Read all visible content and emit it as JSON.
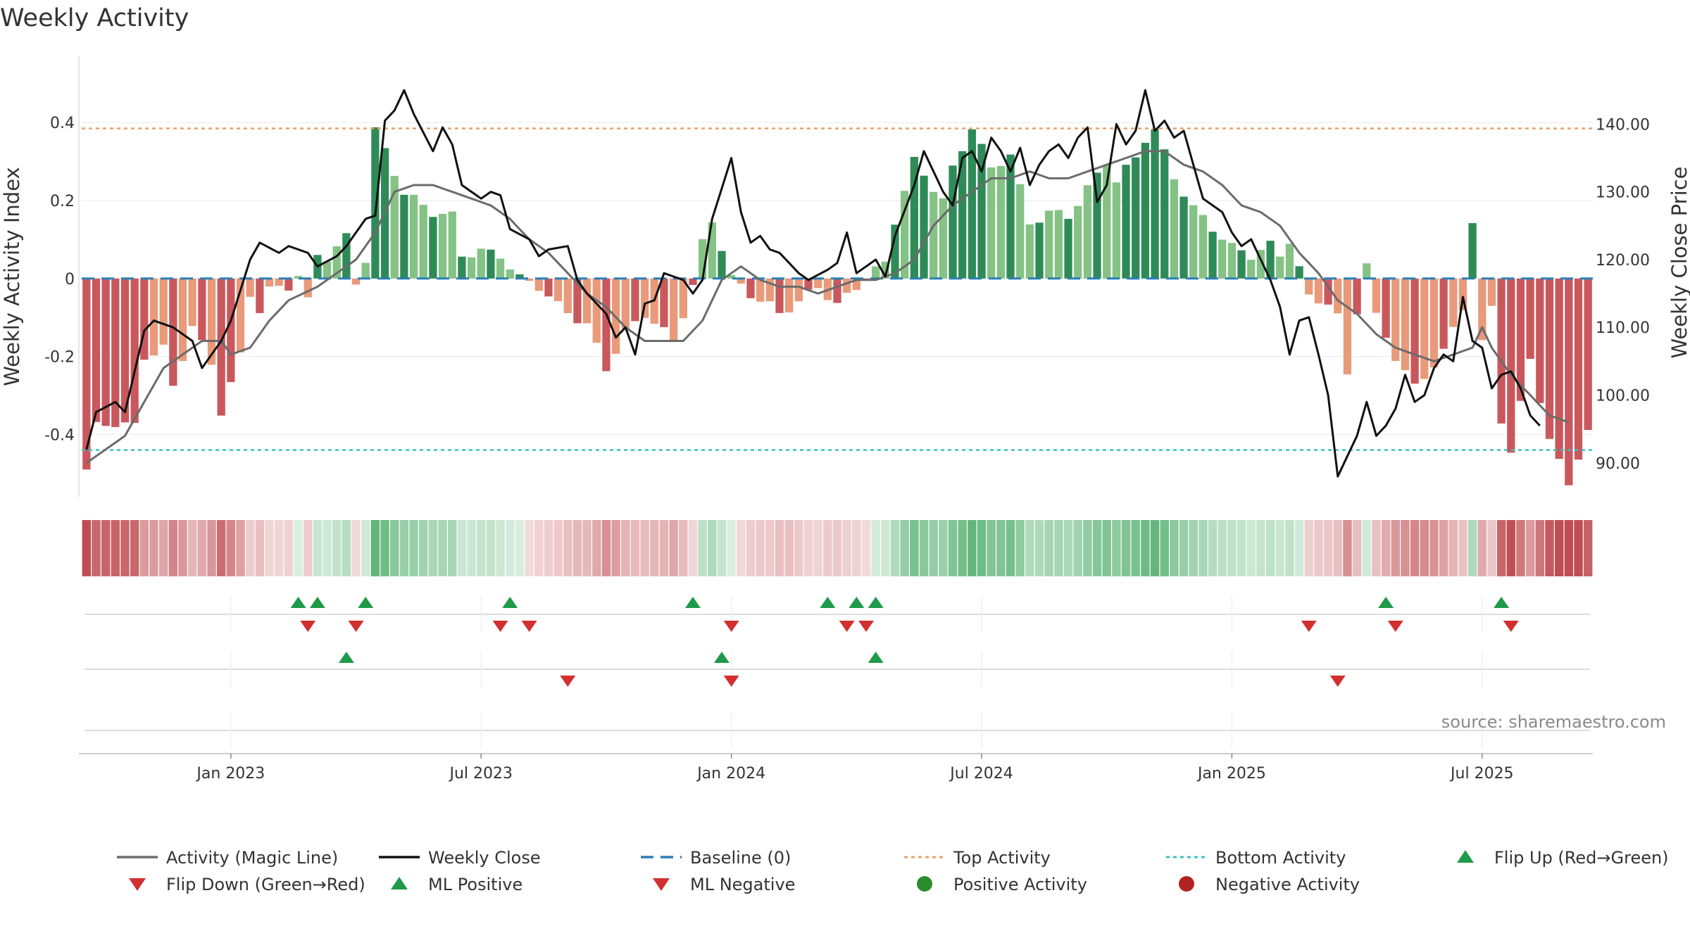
{
  "chart_data": {
    "type": "bar",
    "title": "Weekly Activity",
    "ylabel_left": "Weekly Activity Index",
    "ylabel_right": "Weekly Close Price",
    "ylim_left": [
      -0.56,
      0.57
    ],
    "ylim_right": [
      85.0,
      150.0
    ],
    "left_ticks": [
      {
        "v": 0.4,
        "label": "0.4"
      },
      {
        "v": 0.2,
        "label": "0.2"
      },
      {
        "v": 0,
        "label": "0"
      },
      {
        "v": -0.2,
        "label": "-0.2"
      },
      {
        "v": -0.4,
        "label": "-0.4"
      }
    ],
    "right_ticks": [
      {
        "v": 140,
        "label": "140.00"
      },
      {
        "v": 130,
        "label": "130.00"
      },
      {
        "v": 120,
        "label": "120.00"
      },
      {
        "v": 110,
        "label": "110.00"
      },
      {
        "v": 100,
        "label": "100.00"
      },
      {
        "v": 90,
        "label": "90.00"
      }
    ],
    "x_ticks": [
      {
        "week": 15,
        "label": "Jan 2023"
      },
      {
        "week": 41,
        "label": "Jul 2023"
      },
      {
        "week": 67,
        "label": "Jan 2024"
      },
      {
        "week": 93,
        "label": "Jul 2024"
      },
      {
        "week": 119,
        "label": "Jan 2025"
      },
      {
        "week": 145,
        "label": "Jul 2025"
      }
    ],
    "top_activity": 0.385,
    "bottom_activity": -0.44,
    "weeks": 157,
    "activity_knots": [
      [
        0,
        -0.49
      ],
      [
        1,
        -0.38
      ],
      [
        3,
        -0.37
      ],
      [
        5,
        -0.38
      ],
      [
        6,
        -0.2
      ],
      [
        8,
        -0.18
      ],
      [
        9,
        -0.28
      ],
      [
        11,
        -0.12
      ],
      [
        13,
        -0.22
      ],
      [
        14,
        -0.34
      ],
      [
        16,
        -0.2
      ],
      [
        17,
        -0.04
      ],
      [
        18,
        -0.08
      ],
      [
        19,
        -0.03
      ],
      [
        21,
        -0.02
      ],
      [
        22,
        0.01
      ],
      [
        23,
        -0.06
      ],
      [
        24,
        0.06
      ],
      [
        25,
        0.055
      ],
      [
        27,
        0.105
      ],
      [
        28,
        -0.01
      ],
      [
        29,
        0.05
      ],
      [
        30,
        0.38
      ],
      [
        33,
        0.22
      ],
      [
        36,
        0.17
      ],
      [
        38,
        0.16
      ],
      [
        39,
        0.06
      ],
      [
        41,
        0.07
      ],
      [
        43,
        0.06
      ],
      [
        45,
        0.0
      ],
      [
        47,
        -0.02
      ],
      [
        49,
        -0.07
      ],
      [
        52,
        -0.12
      ],
      [
        54,
        -0.23
      ],
      [
        56,
        -0.14
      ],
      [
        58,
        -0.09
      ],
      [
        61,
        -0.16
      ],
      [
        63,
        -0.02
      ],
      [
        64,
        0.09
      ],
      [
        65,
        0.15
      ],
      [
        66,
        0.08
      ],
      [
        67,
        0.0
      ],
      [
        69,
        -0.04
      ],
      [
        71,
        -0.07
      ],
      [
        72,
        -0.09
      ],
      [
        74,
        -0.06
      ],
      [
        76,
        -0.02
      ],
      [
        78,
        -0.07
      ],
      [
        80,
        -0.02
      ],
      [
        82,
        0.02
      ],
      [
        83,
        0.04
      ],
      [
        84,
        0.15
      ],
      [
        86,
        0.3
      ],
      [
        89,
        0.2
      ],
      [
        90,
        0.28
      ],
      [
        92,
        0.39
      ],
      [
        94,
        0.28
      ],
      [
        96,
        0.32
      ],
      [
        98,
        0.14
      ],
      [
        100,
        0.17
      ],
      [
        102,
        0.16
      ],
      [
        104,
        0.23
      ],
      [
        106,
        0.3
      ],
      [
        107,
        0.25
      ],
      [
        109,
        0.31
      ],
      [
        110,
        0.36
      ],
      [
        111,
        0.38
      ],
      [
        113,
        0.26
      ],
      [
        115,
        0.18
      ],
      [
        117,
        0.13
      ],
      [
        119,
        0.08
      ],
      [
        121,
        0.06
      ],
      [
        123,
        0.085
      ],
      [
        124,
        0.06
      ],
      [
        125,
        0.1
      ],
      [
        127,
        -0.05
      ],
      [
        129,
        -0.06
      ],
      [
        130,
        -0.1
      ],
      [
        131,
        -0.25
      ],
      [
        132,
        -0.08
      ],
      [
        133,
        0.04
      ],
      [
        134,
        -0.1
      ],
      [
        136,
        -0.2
      ],
      [
        138,
        -0.28
      ],
      [
        140,
        -0.22
      ],
      [
        141,
        -0.19
      ],
      [
        143,
        -0.07
      ],
      [
        144,
        0.145
      ],
      [
        145,
        -0.17
      ],
      [
        146,
        -0.07
      ],
      [
        147,
        -0.36
      ],
      [
        148,
        -0.45
      ],
      [
        150,
        -0.2
      ],
      [
        152,
        -0.42
      ],
      [
        154,
        -0.52
      ],
      [
        156,
        -0.4
      ]
    ],
    "close_knots": [
      [
        0,
        92
      ],
      [
        1,
        97.5
      ],
      [
        3,
        99
      ],
      [
        4,
        97.5
      ],
      [
        6,
        109.5
      ],
      [
        7,
        111
      ],
      [
        9,
        110
      ],
      [
        11,
        108
      ],
      [
        12,
        104
      ],
      [
        13,
        106
      ],
      [
        14,
        108
      ],
      [
        15,
        111
      ],
      [
        17,
        120
      ],
      [
        18,
        122.5
      ],
      [
        20,
        121
      ],
      [
        21,
        122
      ],
      [
        23,
        121
      ],
      [
        24,
        119
      ],
      [
        26,
        120.5
      ],
      [
        27,
        122
      ],
      [
        29,
        126
      ],
      [
        30,
        126.5
      ],
      [
        31,
        140.5
      ],
      [
        32,
        142
      ],
      [
        33,
        145
      ],
      [
        34,
        141.5
      ],
      [
        36,
        136
      ],
      [
        37,
        139.5
      ],
      [
        38,
        137
      ],
      [
        39,
        131
      ],
      [
        41,
        129
      ],
      [
        42,
        130
      ],
      [
        43,
        129.5
      ],
      [
        44,
        124.5
      ],
      [
        46,
        123
      ],
      [
        47,
        120.5
      ],
      [
        48,
        121.5
      ],
      [
        50,
        122
      ],
      [
        51,
        117
      ],
      [
        52,
        115
      ],
      [
        54,
        112
      ],
      [
        55,
        108.5
      ],
      [
        56,
        110
      ],
      [
        57,
        106
      ],
      [
        58,
        113.5
      ],
      [
        59,
        114
      ],
      [
        60,
        118
      ],
      [
        62,
        117
      ],
      [
        63,
        115
      ],
      [
        64,
        117
      ],
      [
        65,
        126
      ],
      [
        67,
        135
      ],
      [
        68,
        127
      ],
      [
        69,
        122.5
      ],
      [
        70,
        123.5
      ],
      [
        71,
        121.5
      ],
      [
        72,
        121
      ],
      [
        74,
        118
      ],
      [
        75,
        117
      ],
      [
        77,
        118.5
      ],
      [
        78,
        119.5
      ],
      [
        79,
        124
      ],
      [
        80,
        118
      ],
      [
        81,
        119
      ],
      [
        82,
        120
      ],
      [
        83,
        117.5
      ],
      [
        84,
        123.5
      ],
      [
        86,
        131
      ],
      [
        87,
        136
      ],
      [
        89,
        130
      ],
      [
        90,
        128
      ],
      [
        91,
        135
      ],
      [
        92,
        136
      ],
      [
        93,
        133
      ],
      [
        94,
        138
      ],
      [
        95,
        136
      ],
      [
        96,
        133
      ],
      [
        97,
        136.5
      ],
      [
        98,
        131
      ],
      [
        99,
        134
      ],
      [
        100,
        136
      ],
      [
        101,
        137
      ],
      [
        102,
        135
      ],
      [
        103,
        138
      ],
      [
        104,
        139.5
      ],
      [
        105,
        128.5
      ],
      [
        106,
        131
      ],
      [
        107,
        140
      ],
      [
        108,
        137
      ],
      [
        109,
        139
      ],
      [
        110,
        145
      ],
      [
        111,
        139
      ],
      [
        112,
        140.5
      ],
      [
        113,
        138
      ],
      [
        114,
        139
      ],
      [
        115,
        134
      ],
      [
        116,
        129
      ],
      [
        117,
        128
      ],
      [
        118,
        127
      ],
      [
        119,
        124
      ],
      [
        120,
        122
      ],
      [
        121,
        123
      ],
      [
        122,
        120
      ],
      [
        123,
        117
      ],
      [
        124,
        113
      ],
      [
        125,
        106
      ],
      [
        126,
        111
      ],
      [
        127,
        111.5
      ],
      [
        128,
        106
      ],
      [
        129,
        100
      ],
      [
        130,
        88
      ],
      [
        131,
        91
      ],
      [
        132,
        94
      ],
      [
        133,
        99
      ],
      [
        134,
        94
      ],
      [
        135,
        95.5
      ],
      [
        136,
        98
      ],
      [
        137,
        103
      ],
      [
        138,
        99
      ],
      [
        139,
        100
      ],
      [
        140,
        104
      ],
      [
        141,
        106
      ],
      [
        142,
        105
      ],
      [
        143,
        114.5
      ],
      [
        144,
        108
      ],
      [
        145,
        107
      ],
      [
        146,
        101
      ],
      [
        147,
        103
      ],
      [
        148,
        103.5
      ],
      [
        149,
        101
      ],
      [
        150,
        97
      ],
      [
        151,
        95.5
      ]
    ],
    "magic_knots": [
      [
        0,
        90
      ],
      [
        2,
        92
      ],
      [
        4,
        94
      ],
      [
        6,
        99
      ],
      [
        8,
        104
      ],
      [
        10,
        106
      ],
      [
        12,
        108
      ],
      [
        14,
        108
      ],
      [
        15,
        106
      ],
      [
        17,
        107
      ],
      [
        19,
        111
      ],
      [
        21,
        114
      ],
      [
        24,
        116
      ],
      [
        26,
        118
      ],
      [
        28,
        120
      ],
      [
        30,
        124
      ],
      [
        32,
        130
      ],
      [
        34,
        131
      ],
      [
        36,
        131
      ],
      [
        38,
        130
      ],
      [
        40,
        129
      ],
      [
        42,
        128
      ],
      [
        44,
        126
      ],
      [
        46,
        123
      ],
      [
        48,
        121
      ],
      [
        50,
        118
      ],
      [
        52,
        115
      ],
      [
        54,
        113
      ],
      [
        56,
        110
      ],
      [
        58,
        108
      ],
      [
        60,
        108
      ],
      [
        62,
        108
      ],
      [
        64,
        111
      ],
      [
        66,
        117
      ],
      [
        68,
        119
      ],
      [
        70,
        117
      ],
      [
        72,
        116
      ],
      [
        74,
        116
      ],
      [
        76,
        115
      ],
      [
        78,
        116
      ],
      [
        80,
        117
      ],
      [
        82,
        117
      ],
      [
        84,
        118
      ],
      [
        86,
        120
      ],
      [
        88,
        125
      ],
      [
        90,
        128
      ],
      [
        92,
        130
      ],
      [
        94,
        132
      ],
      [
        96,
        132
      ],
      [
        98,
        133
      ],
      [
        100,
        132
      ],
      [
        102,
        132
      ],
      [
        104,
        133
      ],
      [
        106,
        134
      ],
      [
        108,
        135
      ],
      [
        110,
        136
      ],
      [
        112,
        136
      ],
      [
        114,
        134
      ],
      [
        116,
        133
      ],
      [
        118,
        131
      ],
      [
        120,
        128
      ],
      [
        122,
        127
      ],
      [
        124,
        125
      ],
      [
        126,
        121
      ],
      [
        128,
        118
      ],
      [
        130,
        114
      ],
      [
        132,
        112
      ],
      [
        134,
        109
      ],
      [
        136,
        107
      ],
      [
        138,
        106
      ],
      [
        140,
        105
      ],
      [
        142,
        106
      ],
      [
        144,
        107
      ],
      [
        145,
        110
      ],
      [
        146,
        107
      ],
      [
        148,
        103
      ],
      [
        150,
        100
      ],
      [
        152,
        97
      ],
      [
        154,
        96
      ]
    ],
    "marker_rows": [
      {
        "up": [
          22,
          24,
          29,
          44,
          63,
          77,
          80,
          82,
          135,
          147
        ],
        "down": [
          23,
          28,
          43,
          46,
          67,
          79,
          81,
          127,
          136,
          148
        ]
      },
      {
        "up": [
          27,
          66,
          82
        ],
        "down": [
          50,
          67,
          130
        ]
      },
      {
        "up": [],
        "down": []
      }
    ],
    "source": "source: sharemaestro.com",
    "legend": [
      {
        "label": "Activity (Magic Line)",
        "kind": "line",
        "color": "#6b6b6b"
      },
      {
        "label": "Weekly Close",
        "kind": "line",
        "color": "#111111"
      },
      {
        "label": "Baseline (0)",
        "kind": "dash",
        "color": "#2a7fb6"
      },
      {
        "label": "Top Activity",
        "kind": "dot",
        "color": "#e8a06a"
      },
      {
        "label": "Bottom Activity",
        "kind": "dot",
        "color": "#35c2c2"
      },
      {
        "label": "Flip Up (Red→Green)",
        "kind": "up",
        "color": "#1f9a4a"
      },
      {
        "label": "Flip Down (Green→Red)",
        "kind": "down",
        "color": "#d32f2f"
      },
      {
        "label": "ML Positive",
        "kind": "up",
        "color": "#1f9a4a"
      },
      {
        "label": "ML Negative",
        "kind": "down",
        "color": "#d32f2f"
      },
      {
        "label": "Positive Activity",
        "kind": "circle",
        "color": "#2a8c2a"
      },
      {
        "label": "Negative Activity",
        "kind": "circle",
        "color": "#b22222"
      }
    ],
    "colors": {
      "pos_strong": "#2e8b57",
      "pos_light": "#85c285",
      "neg_strong": "#c9585d",
      "neg_light": "#e89a7a",
      "close": "#111111",
      "magic": "#6b6b6b",
      "baseline": "#2a7fb6",
      "top": "#e8a06a",
      "bottom": "#35c2c2",
      "up": "#1f9a4a",
      "down": "#d32f2f"
    }
  }
}
